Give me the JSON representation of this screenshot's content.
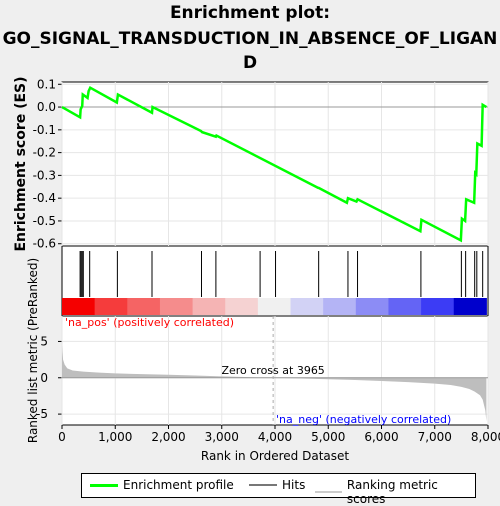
{
  "title_lines": [
    "Enrichment plot:",
    "GO_SIGNAL_TRANSDUCTION_IN_ABSENCE_OF_LIGAN",
    "D"
  ],
  "colors": {
    "es_line": "#00ff00",
    "hits": "#000000",
    "metric_fill": "#bebebe",
    "zero_line": "#bebebe",
    "pos_label": "#ff0000",
    "neg_label": "#0000ff",
    "gradient": [
      "#f50000",
      "#f53c3c",
      "#f56464",
      "#f58c8c",
      "#f5b4b4",
      "#f5d2d2",
      "#f0f0f0",
      "#d2d2f5",
      "#b4b4f5",
      "#8c8cf5",
      "#6464f5",
      "#3c3cf5",
      "#0000cc"
    ]
  },
  "chart_data": [
    {
      "type": "line",
      "name": "enrichment-profile",
      "ylabel": "Enrichment score (ES)",
      "xlim": [
        0,
        8000
      ],
      "ylim": [
        -0.61,
        0.11
      ],
      "yticks": [
        0.1,
        0.0,
        -0.1,
        -0.2,
        -0.3,
        -0.4,
        -0.5,
        -0.6
      ],
      "ytick_labels": [
        "0.1",
        "0.0",
        "-0.1",
        "-0.2",
        "-0.3",
        "-0.4",
        "-0.5",
        "-0.6"
      ],
      "x": [
        0,
        340,
        350,
        380,
        390,
        480,
        500,
        530,
        1030,
        1050,
        1690,
        1700,
        2610,
        2630,
        2890,
        2900,
        4810,
        4820,
        5350,
        5370,
        5530,
        5550,
        6730,
        6750,
        7490,
        7510,
        7570,
        7590,
        7740,
        7760,
        7780,
        7800,
        7880,
        7900,
        7970
      ],
      "y": [
        0.0,
        -0.045,
        -0.01,
        0.005,
        0.055,
        0.04,
        0.07,
        0.085,
        0.02,
        0.055,
        -0.025,
        0.0,
        -0.105,
        -0.11,
        -0.13,
        -0.125,
        -0.355,
        -0.355,
        -0.42,
        -0.4,
        -0.415,
        -0.405,
        -0.545,
        -0.495,
        -0.585,
        -0.49,
        -0.5,
        -0.405,
        -0.42,
        -0.29,
        -0.295,
        -0.16,
        -0.17,
        0.01,
        0.0
      ]
    },
    {
      "type": "hits",
      "name": "hits",
      "x": [
        340,
        360,
        380,
        400,
        520,
        1040,
        1690,
        2620,
        2890,
        3720,
        4010,
        4820,
        5370,
        5550,
        6740,
        7500,
        7580,
        7750,
        7790,
        7900
      ]
    },
    {
      "type": "area",
      "name": "ranking-metric",
      "ylabel": "Ranked list metric (PreRanked)",
      "xlabel": "Rank in Ordered Dataset",
      "xlim": [
        0,
        8000
      ],
      "ylim": [
        -6.5,
        8.5
      ],
      "xticks": [
        0,
        1000,
        2000,
        3000,
        4000,
        5000,
        6000,
        7000,
        8000
      ],
      "xtick_labels": [
        "0",
        "1,000",
        "2,000",
        "3,000",
        "4,000",
        "5,000",
        "6,000",
        "7,000",
        "8,000"
      ],
      "yticks": [
        5,
        0,
        -5
      ],
      "ytick_labels": [
        "5",
        "0",
        "-5"
      ],
      "x": [
        0,
        20,
        50,
        100,
        200,
        400,
        700,
        1000,
        1500,
        2000,
        2500,
        3000,
        3500,
        3965,
        4500,
        5000,
        5500,
        6000,
        6500,
        7000,
        7300,
        7500,
        7650,
        7750,
        7850,
        7900,
        7950,
        7970
      ],
      "y": [
        4.5,
        2.5,
        1.8,
        1.3,
        1.0,
        0.85,
        0.7,
        0.6,
        0.5,
        0.42,
        0.32,
        0.2,
        0.08,
        0.0,
        -0.1,
        -0.2,
        -0.3,
        -0.45,
        -0.6,
        -0.8,
        -1.0,
        -1.25,
        -1.55,
        -1.9,
        -2.4,
        -3.0,
        -4.5,
        -6.0
      ],
      "zero_cross_label": "Zero cross at 3965",
      "pos_label": "'na_pos' (positively correlated)",
      "neg_label": "'na_neg' (negatively correlated)"
    }
  ],
  "legend": {
    "es_label": "Enrichment profile",
    "hits_label": "Hits",
    "metric_label": "Ranking metric scores"
  }
}
